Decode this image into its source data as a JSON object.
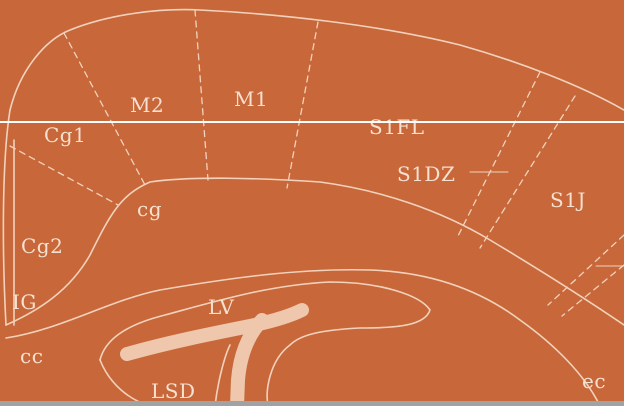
{
  "colors": {
    "background": "#c8683a",
    "line": "#f2d2bc",
    "ventricle": "#efc7ad",
    "label": "#f6e0d0",
    "scanline": "#ffffff",
    "bottom_bar": "#9fa3a6"
  },
  "regions": {
    "m2": "M2",
    "m1": "M1",
    "cg1": "Cg1",
    "s1fl": "S1FL",
    "s1dz": "S1DZ",
    "cg": "cg",
    "s1j": "S1J",
    "cg2": "Cg2",
    "ig": "IG",
    "lv": "LV",
    "cc": "cc",
    "lsd": "LSD",
    "ec": "ec"
  }
}
